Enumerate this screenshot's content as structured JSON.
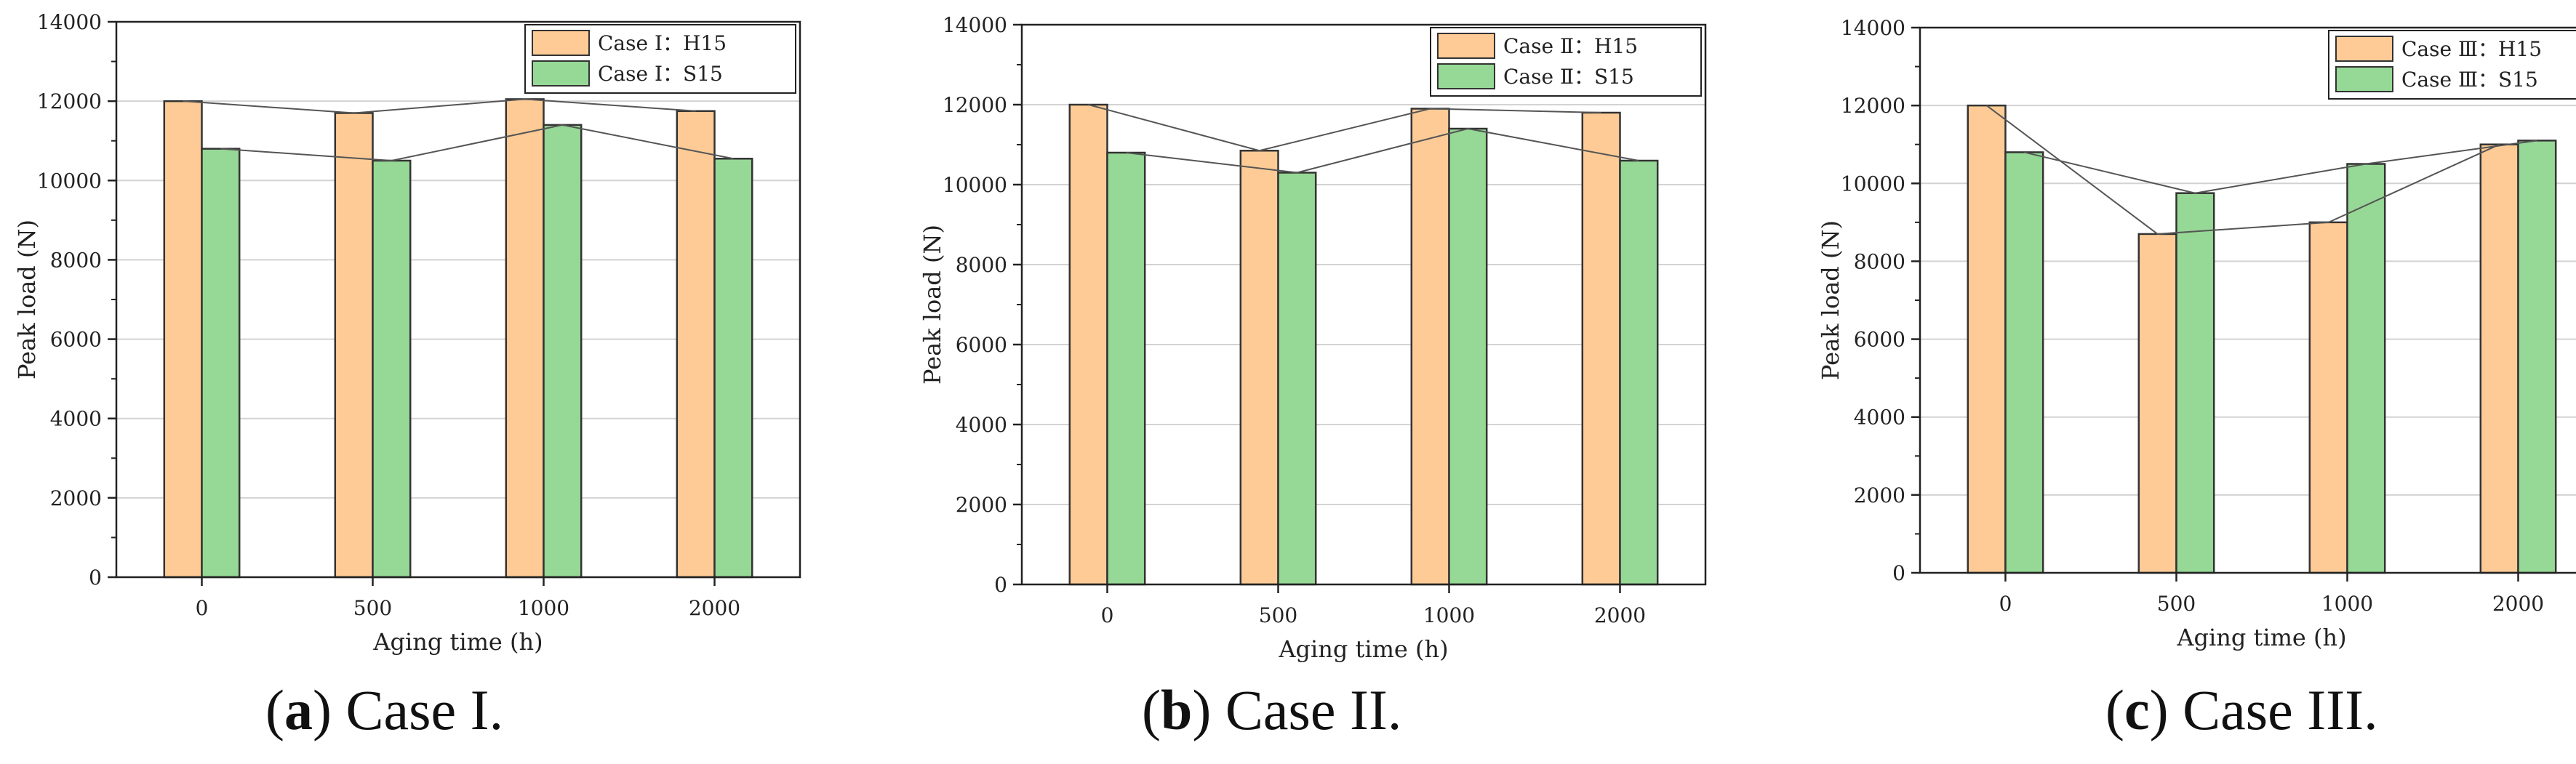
{
  "colors": {
    "h15": "#fecb96",
    "s15": "#96d895",
    "bar_stroke": "#333333",
    "line": "#555555",
    "grid": "#d3d3d3"
  },
  "chart_data": [
    {
      "type": "bar",
      "categories": [
        "0",
        "500",
        "1000",
        "2000"
      ],
      "xlabel": "Aging time (h)",
      "ylabel": "Peak load (N)",
      "ylim": [
        0,
        14000
      ],
      "yticks": [
        "0",
        "2000",
        "4000",
        "6000",
        "8000",
        "10000",
        "12000",
        "14000"
      ],
      "grid": true,
      "legend_position": "top-right",
      "connector_lines": true,
      "series": [
        {
          "name": "Case Ⅰ：H15",
          "values": [
            12000,
            11700,
            12050,
            11750
          ]
        },
        {
          "name": "Case Ⅰ：S15",
          "values": [
            10800,
            10500,
            11400,
            10550
          ]
        }
      ],
      "caption": {
        "letter": "a",
        "text": " Case I."
      }
    },
    {
      "type": "bar",
      "categories": [
        "0",
        "500",
        "1000",
        "2000"
      ],
      "xlabel": "Aging time (h)",
      "ylabel": "Peak load (N)",
      "ylim": [
        0,
        14000
      ],
      "yticks": [
        "0",
        "2000",
        "4000",
        "6000",
        "8000",
        "10000",
        "12000",
        "14000"
      ],
      "grid": true,
      "legend_position": "top-right",
      "connector_lines": true,
      "series": [
        {
          "name": "Case Ⅱ：H15",
          "values": [
            12000,
            10850,
            11900,
            11800
          ]
        },
        {
          "name": "Case Ⅱ：S15",
          "values": [
            10800,
            10300,
            11400,
            10600
          ]
        }
      ],
      "caption": {
        "letter": "b",
        "text": " Case II."
      }
    },
    {
      "type": "bar",
      "categories": [
        "0",
        "500",
        "1000",
        "2000"
      ],
      "xlabel": "Aging time (h)",
      "ylabel": "Peak load (N)",
      "ylim": [
        0,
        14000
      ],
      "yticks": [
        "0",
        "2000",
        "4000",
        "6000",
        "8000",
        "10000",
        "12000",
        "14000"
      ],
      "grid": true,
      "legend_position": "top-right",
      "connector_lines": true,
      "series": [
        {
          "name": "Case Ⅲ：H15",
          "values": [
            12000,
            8700,
            9000,
            11000
          ]
        },
        {
          "name": "Case Ⅲ：S15",
          "values": [
            10800,
            9750,
            10500,
            11100
          ]
        }
      ],
      "caption": {
        "letter": "c",
        "text": " Case III."
      }
    }
  ]
}
